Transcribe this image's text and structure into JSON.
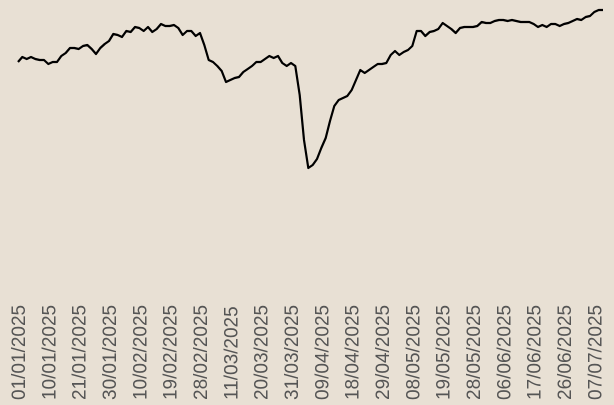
{
  "chart_data": {
    "type": "line",
    "categories": [
      "01/01/2025",
      null,
      null,
      null,
      null,
      null,
      null,
      "10/01/2025",
      null,
      null,
      null,
      null,
      null,
      null,
      "21/01/2025",
      null,
      null,
      null,
      null,
      null,
      null,
      "30/01/2025",
      null,
      null,
      null,
      null,
      null,
      null,
      "10/02/2025",
      null,
      null,
      null,
      null,
      null,
      null,
      "19/02/2025",
      null,
      null,
      null,
      null,
      null,
      null,
      "28/02/2025",
      null,
      null,
      null,
      null,
      null,
      null,
      "11/03/2025",
      null,
      null,
      null,
      null,
      null,
      null,
      "20/03/2025",
      null,
      null,
      null,
      null,
      null,
      null,
      "31/03/2025",
      null,
      null,
      null,
      null,
      null,
      null,
      "09/04/2025",
      null,
      null,
      null,
      null,
      null,
      null,
      "18/04/2025",
      null,
      null,
      null,
      null,
      null,
      null,
      "29/04/2025",
      null,
      null,
      null,
      null,
      null,
      null,
      "08/05/2025",
      null,
      null,
      null,
      null,
      null,
      null,
      "19/05/2025",
      null,
      null,
      null,
      null,
      null,
      null,
      "28/05/2025",
      null,
      null,
      null,
      null,
      null,
      null,
      "06/06/2025",
      null,
      null,
      null,
      null,
      null,
      null,
      "17/06/2025",
      null,
      null,
      null,
      null,
      null,
      null,
      "26/06/2025",
      null,
      null,
      null,
      null,
      null,
      null,
      "07/07/2025",
      null,
      null
    ],
    "series": [
      {
        "color": "#000000",
        "values": [
          138,
          143,
          141,
          143,
          141,
          140,
          140,
          136,
          138,
          138,
          144,
          147,
          152,
          152,
          151,
          154,
          155,
          151,
          146,
          152,
          156,
          159,
          166,
          165,
          163,
          169,
          168,
          173,
          172,
          169,
          173,
          168,
          171,
          176,
          174,
          174,
          175,
          172,
          165,
          169,
          169,
          164,
          167,
          155,
          140,
          138,
          134,
          129,
          118,
          120,
          122,
          123,
          128,
          131,
          134,
          138,
          138,
          141,
          144,
          142,
          144,
          137,
          134,
          137,
          134,
          105,
          60,
          32,
          35,
          41,
          52,
          62,
          79,
          94,
          100,
          102,
          104,
          110,
          120,
          130,
          127,
          130,
          133,
          136,
          136,
          137,
          145,
          149,
          145,
          148,
          150,
          154,
          169,
          169,
          164,
          168,
          169,
          171,
          177,
          174,
          171,
          167,
          172,
          173,
          173,
          173,
          174,
          178,
          177,
          177,
          179,
          180,
          180,
          179,
          180,
          179,
          178,
          178,
          178,
          176,
          173,
          175,
          173,
          176,
          176,
          174,
          176,
          177,
          179,
          181,
          180,
          183,
          184,
          188,
          190,
          190
        ]
      }
    ]
  }
}
